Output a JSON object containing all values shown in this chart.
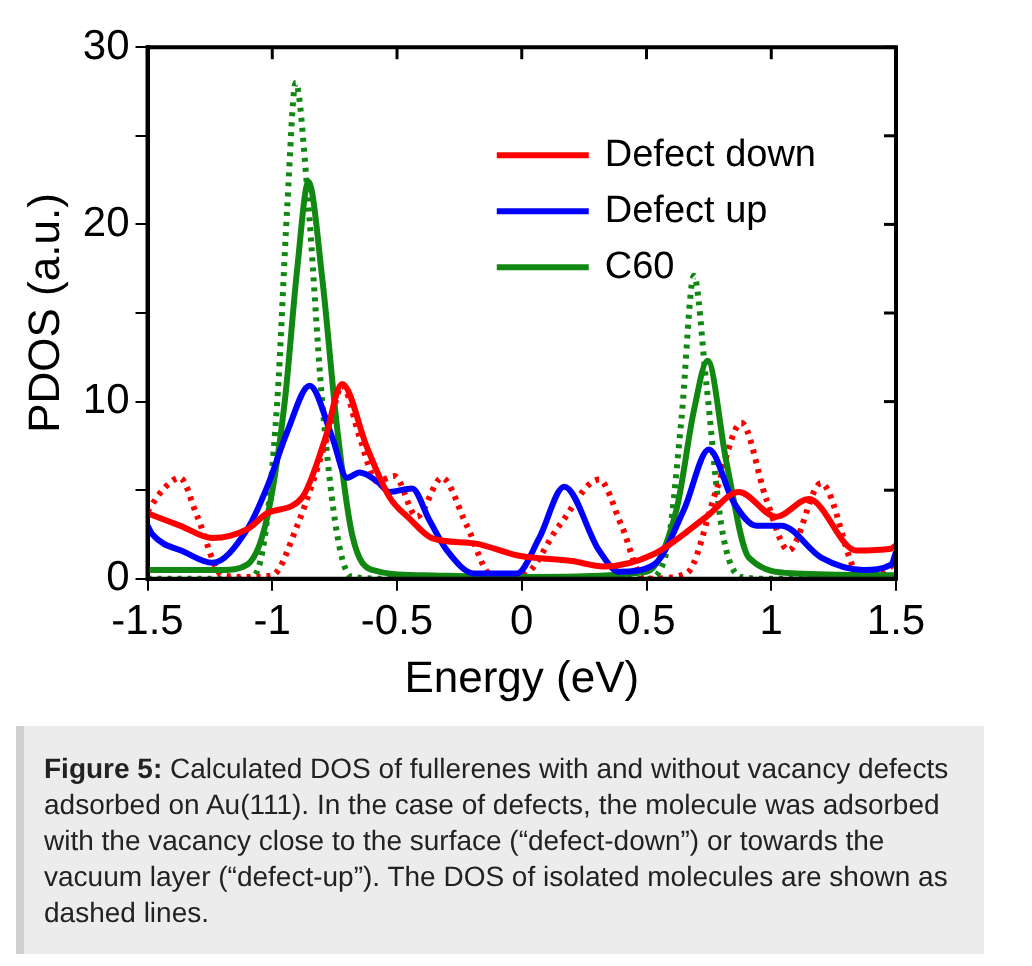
{
  "chart_data": {
    "type": "line",
    "xlabel": "Energy (eV)",
    "ylabel": "PDOS (a.u.)",
    "xlim": [
      -1.5,
      1.5
    ],
    "xticks": [
      -1.5,
      -1,
      -0.5,
      0,
      0.5,
      1,
      1.5
    ],
    "ylim": [
      0,
      30
    ],
    "yticks": [
      0,
      {
        "value": 5,
        "label": null
      },
      10,
      {
        "value": 15,
        "label": null
      },
      20,
      {
        "value": 25,
        "label": null
      },
      30
    ],
    "grid": false,
    "legend": "top right",
    "marker": "none",
    "series": [
      {
        "name": "Defect down",
        "color": "#ff0000",
        "line_style": "solid",
        "x": [
          -1.5,
          -1.37,
          -1.24,
          -1.1,
          -1.02,
          -0.88,
          -0.79,
          -0.72,
          -0.62,
          -0.53,
          -0.45,
          -0.36,
          -0.19,
          -0.01,
          0.2,
          0.33,
          0.53,
          0.74,
          0.87,
          1.02,
          1.15,
          1.34,
          1.48,
          1.5
        ],
        "values": [
          3.7,
          3.0,
          2.3,
          2.8,
          3.7,
          4.6,
          7.8,
          11.0,
          7.4,
          4.6,
          3.4,
          2.3,
          2.0,
          1.3,
          1.0,
          0.7,
          1.4,
          3.5,
          4.9,
          3.5,
          4.5,
          1.6,
          1.7,
          1.9
        ]
      },
      {
        "name": "Defect up",
        "color": "#0000ff",
        "line_style": "solid",
        "x": [
          -1.5,
          -1.48,
          -1.35,
          -1.24,
          -1.1,
          -1.02,
          -0.94,
          -0.85,
          -0.76,
          -0.7,
          -0.65,
          -0.58,
          -0.53,
          -0.44,
          -0.37,
          -0.3,
          -0.19,
          -0.02,
          0.07,
          0.17,
          0.31,
          0.39,
          0.53,
          0.65,
          0.75,
          0.85,
          0.94,
          1.04,
          1.2,
          1.37,
          1.48,
          1.5
        ],
        "values": [
          3.0,
          2.5,
          1.5,
          0.9,
          2.8,
          5.2,
          8.3,
          10.9,
          8.0,
          5.7,
          6.0,
          5.5,
          4.9,
          5.1,
          3.3,
          1.6,
          0.3,
          0.3,
          2.3,
          5.2,
          1.6,
          0.4,
          0.8,
          3.9,
          7.3,
          4.3,
          3.0,
          3.0,
          1.2,
          0.5,
          0.8,
          1.5
        ]
      },
      {
        "name": "C60",
        "color": "#118811",
        "line_style": "solid",
        "x": [
          -1.5,
          -1.2,
          -1.1,
          -1.02,
          -0.95,
          -0.9,
          -0.855,
          -0.8,
          -0.74,
          -0.68,
          -0.6,
          -0.4,
          0,
          0.5,
          0.62,
          0.69,
          0.745,
          0.82,
          0.91,
          1.1,
          1.5
        ],
        "values": [
          0.5,
          0.5,
          0.8,
          3.5,
          10.0,
          17.5,
          22.4,
          17.0,
          8.5,
          2.5,
          0.5,
          0.2,
          0.1,
          0.4,
          3.9,
          9.5,
          12.3,
          6.6,
          1.2,
          0.3,
          0.2
        ]
      },
      {
        "color": "#ff0000",
        "line_style": "dotted",
        "x": [
          -1.5,
          -1.44,
          -1.37,
          -1.3,
          -1.2,
          -1.1,
          -1.0,
          -0.9,
          -0.78,
          -0.72,
          -0.65,
          -0.58,
          -0.51,
          -0.42,
          -0.32,
          -0.22,
          -0.12,
          0.0,
          0.15,
          0.31,
          0.4,
          0.49,
          0.66,
          0.78,
          0.88,
          0.98,
          1.07,
          1.2,
          1.36,
          1.48,
          1.5
        ],
        "values": [
          3.8,
          5.0,
          5.7,
          3.5,
          0.2,
          0.1,
          0.2,
          3.0,
          8.0,
          10.9,
          8.0,
          5.5,
          5.8,
          3.5,
          5.7,
          3.0,
          0.2,
          0.2,
          3.0,
          5.6,
          3.0,
          0.0,
          0.3,
          5.0,
          8.8,
          4.5,
          1.6,
          5.4,
          0.1,
          0.7,
          1.0
        ]
      },
      {
        "color": "#118811",
        "line_style": "dotted",
        "x": [
          -1.5,
          -1.1,
          -1.04,
          -0.98,
          -0.94,
          -0.906,
          -0.86,
          -0.8,
          -0.74,
          -0.68,
          -0.5,
          0.5,
          0.58,
          0.64,
          0.69,
          0.74,
          0.8,
          0.88,
          1.0,
          1.5
        ],
        "values": [
          0,
          0,
          1.5,
          10.0,
          21.0,
          28.0,
          22.0,
          10.0,
          2.5,
          0.1,
          0,
          0,
          1.5,
          9.0,
          17.1,
          11.0,
          3.0,
          0.1,
          0,
          0
        ]
      }
    ],
    "annotations": [
      "Figure 5: Calculated DOS of fullerenes with and without vacancy defects adsorbed on Au(111). In the case of defects, the molecule was adsorbed with the vacancy close to the surface (“defect-down”) or towards the vacuum layer (“defect-up”). The DOS of isolated molecules are shown as dashed lines."
    ]
  }
}
